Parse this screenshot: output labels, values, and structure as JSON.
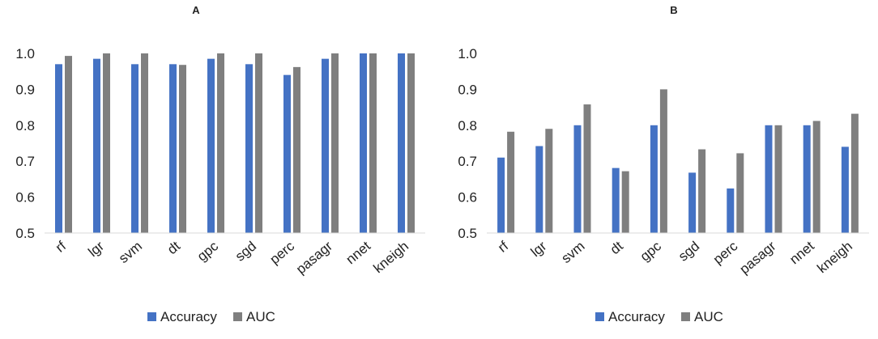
{
  "chart_data": [
    {
      "type": "bar",
      "title": "A",
      "categories": [
        "rf",
        "lgr",
        "svm",
        "dt",
        "gpc",
        "sgd",
        "perc",
        "pasagr",
        "nnet",
        "kneigh"
      ],
      "series": [
        {
          "name": "Accuracy",
          "color": "#4472C4",
          "values": [
            0.97,
            0.985,
            0.97,
            0.97,
            0.985,
            0.97,
            0.94,
            0.985,
            1.0,
            1.0
          ]
        },
        {
          "name": "AUC",
          "color": "#7F7F7F",
          "values": [
            0.993,
            1.0,
            1.0,
            0.968,
            1.0,
            1.0,
            0.962,
            1.0,
            1.0,
            1.0
          ]
        }
      ],
      "ylim": [
        0.5,
        1.0
      ],
      "yticks": [
        "0.5",
        "0.6",
        "0.7",
        "0.8",
        "0.9",
        "1.0"
      ],
      "legend": "bottom",
      "grid": false
    },
    {
      "type": "bar",
      "title": "B",
      "categories": [
        "rf",
        "lgr",
        "svm",
        "dt",
        "gpc",
        "sgd",
        "perc",
        "pasagr",
        "nnet",
        "kneigh"
      ],
      "series": [
        {
          "name": "Accuracy",
          "color": "#4472C4",
          "values": [
            0.71,
            0.742,
            0.8,
            0.681,
            0.8,
            0.668,
            0.624,
            0.8,
            0.8,
            0.74
          ]
        },
        {
          "name": "AUC",
          "color": "#7F7F7F",
          "values": [
            0.782,
            0.79,
            0.858,
            0.672,
            0.9,
            0.733,
            0.722,
            0.8,
            0.812,
            0.832
          ]
        }
      ],
      "ylim": [
        0.5,
        1.0
      ],
      "yticks": [
        "0.5",
        "0.6",
        "0.7",
        "0.8",
        "0.9",
        "1.0"
      ],
      "legend": "bottom",
      "grid": false
    }
  ]
}
